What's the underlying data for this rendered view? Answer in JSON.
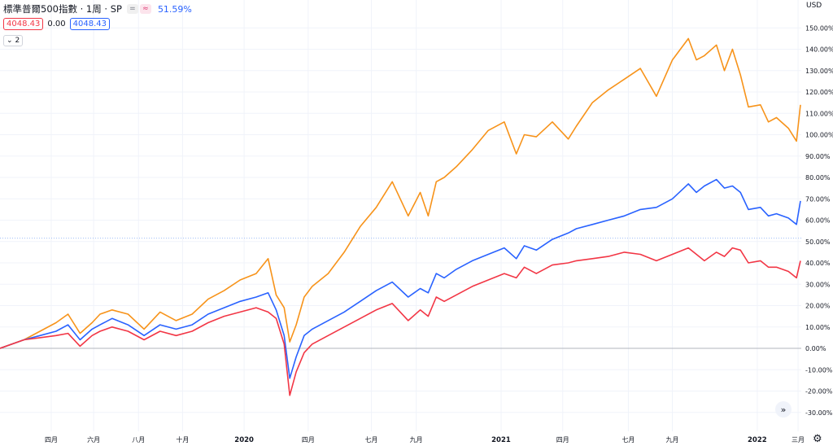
{
  "legend": {
    "title": "標準普爾500指數 · 1周 · SP",
    "eq_label": "=",
    "cmp_label": "≈",
    "change_pct": "51.59%",
    "val_red": "4048.43",
    "val_mid": "0.00",
    "val_blue": "4048.43",
    "collapse_label": "2"
  },
  "axis": {
    "currency": "USD"
  },
  "colors": {
    "orange": "#f7931a",
    "blue": "#2962ff",
    "red": "#f23645",
    "grid": "#f0f3fa",
    "ref": "#9fbdf5"
  },
  "chart_data": {
    "type": "line",
    "y_unit": "%",
    "ylim": [
      -35,
      155
    ],
    "yticks": [
      -30,
      -20,
      -10,
      0,
      10,
      20,
      30,
      40,
      50,
      60,
      70,
      80,
      90,
      100,
      110,
      120,
      130,
      140,
      150
    ],
    "ytick_labels": [
      "-30.00%",
      "-20.00%",
      "-10.00%",
      "0.00%",
      "10.00%",
      "20.00%",
      "30.00%",
      "40.00%",
      "50.00%",
      "60.00%",
      "70.00%",
      "80.00%",
      "90.00%",
      "100.00%",
      "110.00%",
      "120.00%",
      "130.00%",
      "140.00%",
      "150.00%"
    ],
    "reference_line": 51.59,
    "xticks": [
      {
        "label": "四月",
        "x": 0.064
      },
      {
        "label": "六月",
        "x": 0.117
      },
      {
        "label": "八月",
        "x": 0.173
      },
      {
        "label": "十月",
        "x": 0.228
      },
      {
        "label": "2020",
        "x": 0.305,
        "bold": true
      },
      {
        "label": "四月",
        "x": 0.385
      },
      {
        "label": "七月",
        "x": 0.464
      },
      {
        "label": "九月",
        "x": 0.52
      },
      {
        "label": "2021",
        "x": 0.626,
        "bold": true
      },
      {
        "label": "四月",
        "x": 0.703
      },
      {
        "label": "七月",
        "x": 0.785
      },
      {
        "label": "九月",
        "x": 0.84
      },
      {
        "label": "2022",
        "x": 0.946,
        "bold": true
      },
      {
        "label": "三月",
        "x": 0.997
      }
    ],
    "x": [
      0,
      0.03,
      0.05,
      0.07,
      0.085,
      0.1,
      0.115,
      0.125,
      0.14,
      0.16,
      0.18,
      0.2,
      0.22,
      0.24,
      0.26,
      0.28,
      0.3,
      0.32,
      0.335,
      0.345,
      0.355,
      0.362,
      0.37,
      0.38,
      0.39,
      0.41,
      0.43,
      0.45,
      0.47,
      0.49,
      0.51,
      0.525,
      0.535,
      0.545,
      0.555,
      0.57,
      0.59,
      0.61,
      0.63,
      0.645,
      0.655,
      0.67,
      0.69,
      0.71,
      0.72,
      0.74,
      0.76,
      0.78,
      0.8,
      0.82,
      0.84,
      0.86,
      0.87,
      0.88,
      0.895,
      0.905,
      0.915,
      0.925,
      0.935,
      0.95,
      0.96,
      0.97,
      0.985,
      0.995,
      1.0
    ],
    "series": [
      {
        "color": "orange",
        "values": [
          0,
          4,
          8,
          12,
          16,
          7,
          12,
          16,
          18,
          16,
          9,
          17,
          13,
          16,
          23,
          27,
          32,
          35,
          42,
          25,
          19,
          3,
          11,
          24,
          29,
          35,
          45,
          57,
          66,
          78,
          62,
          73,
          62,
          78,
          80,
          85,
          93,
          102,
          106,
          91,
          100,
          99,
          106,
          98,
          104,
          115,
          121,
          126,
          131,
          118,
          135,
          145,
          135,
          137,
          142,
          130,
          140,
          128,
          113,
          114,
          106,
          108,
          103,
          97,
          114
        ]
      },
      {
        "color": "blue",
        "values": [
          0,
          4,
          6,
          8,
          11,
          4,
          9,
          11,
          14,
          11,
          6,
          11,
          9,
          11,
          16,
          19,
          22,
          24,
          26,
          18,
          6,
          -14,
          -4,
          6,
          9,
          13,
          17,
          22,
          27,
          31,
          24,
          28,
          26,
          35,
          33,
          37,
          41,
          44,
          47,
          42,
          48,
          46,
          51,
          54,
          56,
          58,
          60,
          62,
          65,
          66,
          70,
          77,
          73,
          76,
          79,
          75,
          76,
          73,
          65,
          66,
          62,
          63,
          61,
          58,
          69
        ]
      },
      {
        "color": "red",
        "values": [
          0,
          4,
          5,
          6,
          7,
          1,
          6,
          8,
          10,
          8,
          4,
          8,
          6,
          8,
          12,
          15,
          17,
          19,
          17,
          14,
          2,
          -22,
          -11,
          -2,
          2,
          6,
          10,
          14,
          18,
          21,
          13,
          18,
          15,
          24,
          22,
          25,
          29,
          32,
          35,
          33,
          38,
          35,
          39,
          40,
          41,
          42,
          43,
          45,
          44,
          41,
          44,
          47,
          44,
          41,
          45,
          43,
          47,
          46,
          40,
          41,
          38,
          38,
          36,
          33,
          41
        ]
      }
    ]
  }
}
